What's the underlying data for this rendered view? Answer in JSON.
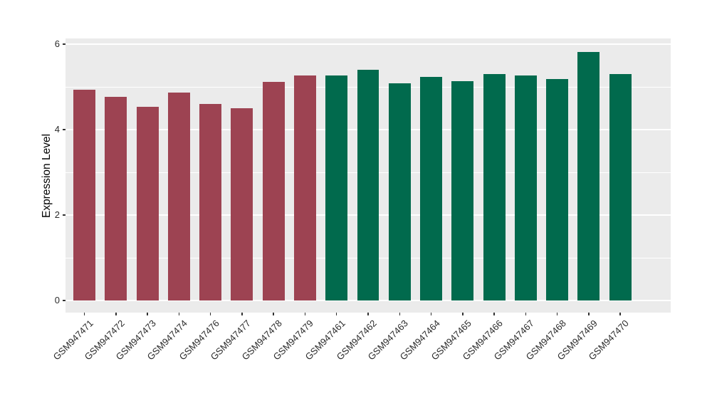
{
  "chart_data": {
    "type": "bar",
    "title": "",
    "xlabel": "",
    "ylabel": "Expression Level",
    "ylim": [
      0,
      6.13
    ],
    "yticks": [
      0,
      2,
      4,
      6
    ],
    "yticks_minor": [
      1,
      3,
      5
    ],
    "grid": true,
    "legend": false,
    "categories": [
      "GSM947471",
      "GSM947472",
      "GSM947473",
      "GSM947474",
      "GSM947476",
      "GSM947477",
      "GSM947478",
      "GSM947479",
      "GSM947461",
      "GSM947462",
      "GSM947463",
      "GSM947464",
      "GSM947465",
      "GSM947466",
      "GSM947467",
      "GSM947468",
      "GSM947469",
      "GSM947470"
    ],
    "values": [
      4.93,
      4.76,
      4.53,
      4.86,
      4.6,
      4.5,
      5.12,
      5.27,
      5.26,
      5.4,
      5.09,
      5.23,
      5.14,
      5.3,
      5.27,
      5.19,
      5.81,
      5.3
    ],
    "bar_colors": [
      "#9D4352",
      "#9D4352",
      "#9D4352",
      "#9D4352",
      "#9D4352",
      "#9D4352",
      "#9D4352",
      "#9D4352",
      "#016A4D",
      "#016A4D",
      "#016A4D",
      "#016A4D",
      "#016A4D",
      "#016A4D",
      "#016A4D",
      "#016A4D",
      "#016A4D",
      "#016A4D"
    ],
    "group_colors": {
      "group1": "#9D4352",
      "group2": "#016A4D"
    },
    "panel_background": "#EBEBEB",
    "gridline_color": "#FFFFFF",
    "tick_color": "#333333"
  }
}
